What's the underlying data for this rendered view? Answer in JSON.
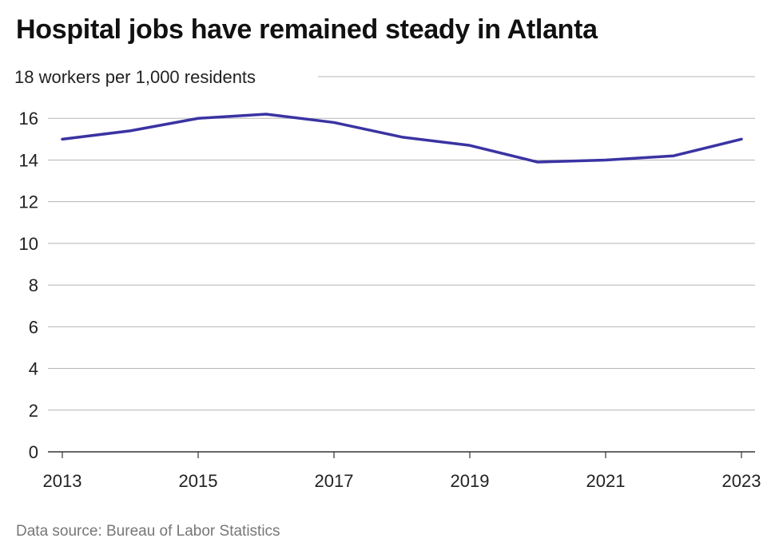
{
  "title": "Hospital jobs have remained steady in Atlanta",
  "source": "Data source: Bureau of Labor Statistics",
  "colors": {
    "line": "#3a33a3",
    "grid": "#b5b5b5",
    "axis": "#333333"
  },
  "chart_data": {
    "type": "line",
    "title": "Hospital jobs have remained steady in Atlanta",
    "ylabel": "workers per 1,000 residents",
    "top_tick_label": "18 workers per 1,000 residents",
    "x": [
      2013,
      2014,
      2015,
      2016,
      2017,
      2018,
      2019,
      2020,
      2021,
      2022,
      2023
    ],
    "values": [
      15.0,
      15.4,
      16.0,
      16.2,
      15.8,
      15.1,
      14.7,
      13.9,
      14.0,
      14.2,
      15.0
    ],
    "xticks": [
      "2013",
      "2015",
      "2017",
      "2019",
      "2021",
      "2023"
    ],
    "yticks": [
      0,
      2,
      4,
      6,
      8,
      10,
      12,
      14,
      16,
      18
    ],
    "ylim": [
      0,
      18
    ],
    "xlim": [
      2013,
      2023
    ],
    "grid": true,
    "legend": "none"
  }
}
